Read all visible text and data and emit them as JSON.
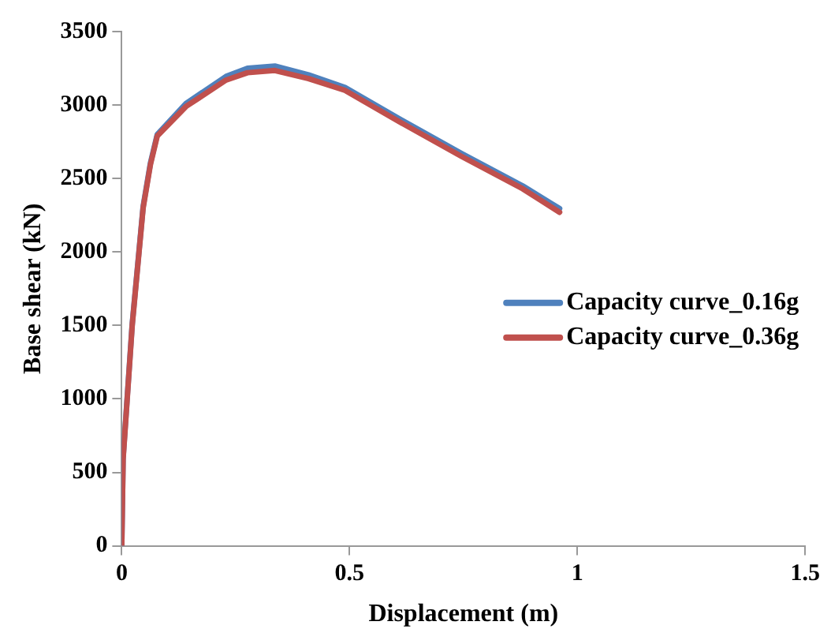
{
  "chart_data": {
    "type": "line",
    "xlabel": "Displacement (m)",
    "ylabel": "Base shear (kN)",
    "xlim": [
      0,
      1.5
    ],
    "xticks": [
      0,
      0.5,
      1,
      1.5
    ],
    "ylim": [
      0,
      3500
    ],
    "yticks": [
      0,
      500,
      1000,
      1500,
      2000,
      2500,
      3000,
      3500
    ],
    "grid": false,
    "legend": "right",
    "marker": "none",
    "line_style": "solid",
    "series": [
      {
        "name": "Capacity curve_0.16g",
        "color": "#4f81bd",
        "x": [
          0,
          0.003,
          0.023,
          0.047,
          0.063,
          0.078,
          0.141,
          0.229,
          0.276,
          0.336,
          0.41,
          0.49,
          0.61,
          0.746,
          0.88,
          0.961
        ],
        "values": [
          0,
          600,
          1510,
          2310,
          2605,
          2800,
          3010,
          3195,
          3250,
          3265,
          3205,
          3120,
          2905,
          2670,
          2450,
          2295
        ]
      },
      {
        "name": "Capacity curve_0.36g",
        "color": "#c0504d",
        "x": [
          0,
          0.003,
          0.023,
          0.047,
          0.063,
          0.078,
          0.141,
          0.229,
          0.276,
          0.336,
          0.41,
          0.49,
          0.61,
          0.746,
          0.88,
          0.961
        ],
        "values": [
          0,
          590,
          1500,
          2300,
          2595,
          2790,
          2990,
          3170,
          3220,
          3235,
          3180,
          3100,
          2885,
          2650,
          2430,
          2270
        ]
      }
    ]
  }
}
